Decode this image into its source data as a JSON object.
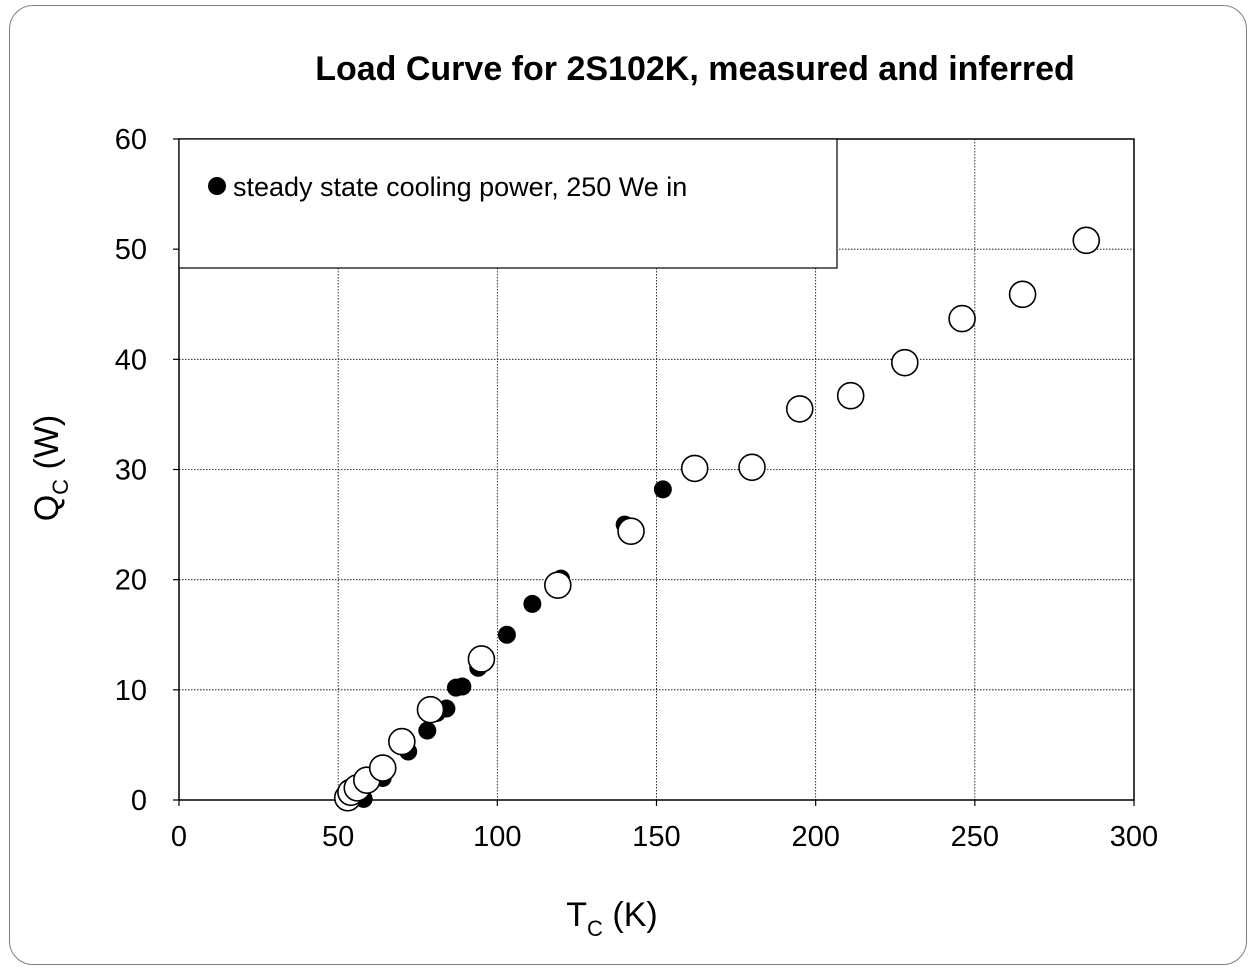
{
  "chart_data": {
    "type": "scatter",
    "title": "Load Curve for 2S102K, measured and inferred",
    "xlabel": {
      "main": "T",
      "sub": "C",
      "unit": " (K)"
    },
    "ylabel": {
      "main": "Q",
      "sub": "C",
      "unit": " (W)"
    },
    "xlim": [
      0,
      300
    ],
    "ylim": [
      0,
      60
    ],
    "xticks": [
      0,
      50,
      100,
      150,
      200,
      250,
      300
    ],
    "yticks": [
      0,
      10,
      20,
      30,
      40,
      50,
      60
    ],
    "grid": true,
    "legend": {
      "placement": "top-left",
      "entries": [
        "steady state cooling power, 250 We in"
      ]
    },
    "series": [
      {
        "name": "steady state cooling power, 250 We in",
        "marker": "filled-circle",
        "color": "#000000",
        "points": [
          [
            58,
            0.1
          ],
          [
            55,
            0.6
          ],
          [
            64,
            2.0
          ],
          [
            72,
            4.4
          ],
          [
            78,
            6.3
          ],
          [
            81,
            7.9
          ],
          [
            84,
            8.3
          ],
          [
            87,
            10.2
          ],
          [
            89,
            10.3
          ],
          [
            94,
            12.0
          ],
          [
            103,
            15.0
          ],
          [
            111,
            17.8
          ],
          [
            120,
            20.1
          ],
          [
            140,
            25.0
          ],
          [
            152,
            28.2
          ]
        ]
      },
      {
        "marker": "open-circle",
        "color": "#000000",
        "points": [
          [
            53,
            0.2
          ],
          [
            54,
            0.7
          ],
          [
            56,
            1.1
          ],
          [
            59,
            1.8
          ],
          [
            64,
            2.9
          ],
          [
            70,
            5.3
          ],
          [
            79,
            8.2
          ],
          [
            95,
            12.8
          ],
          [
            119,
            19.5
          ],
          [
            142,
            24.4
          ],
          [
            162,
            30.1
          ],
          [
            180,
            30.2
          ],
          [
            195,
            35.5
          ],
          [
            211,
            36.7
          ],
          [
            228,
            39.7
          ],
          [
            246,
            43.7
          ],
          [
            265,
            45.9
          ],
          [
            285,
            50.8
          ]
        ]
      }
    ]
  }
}
